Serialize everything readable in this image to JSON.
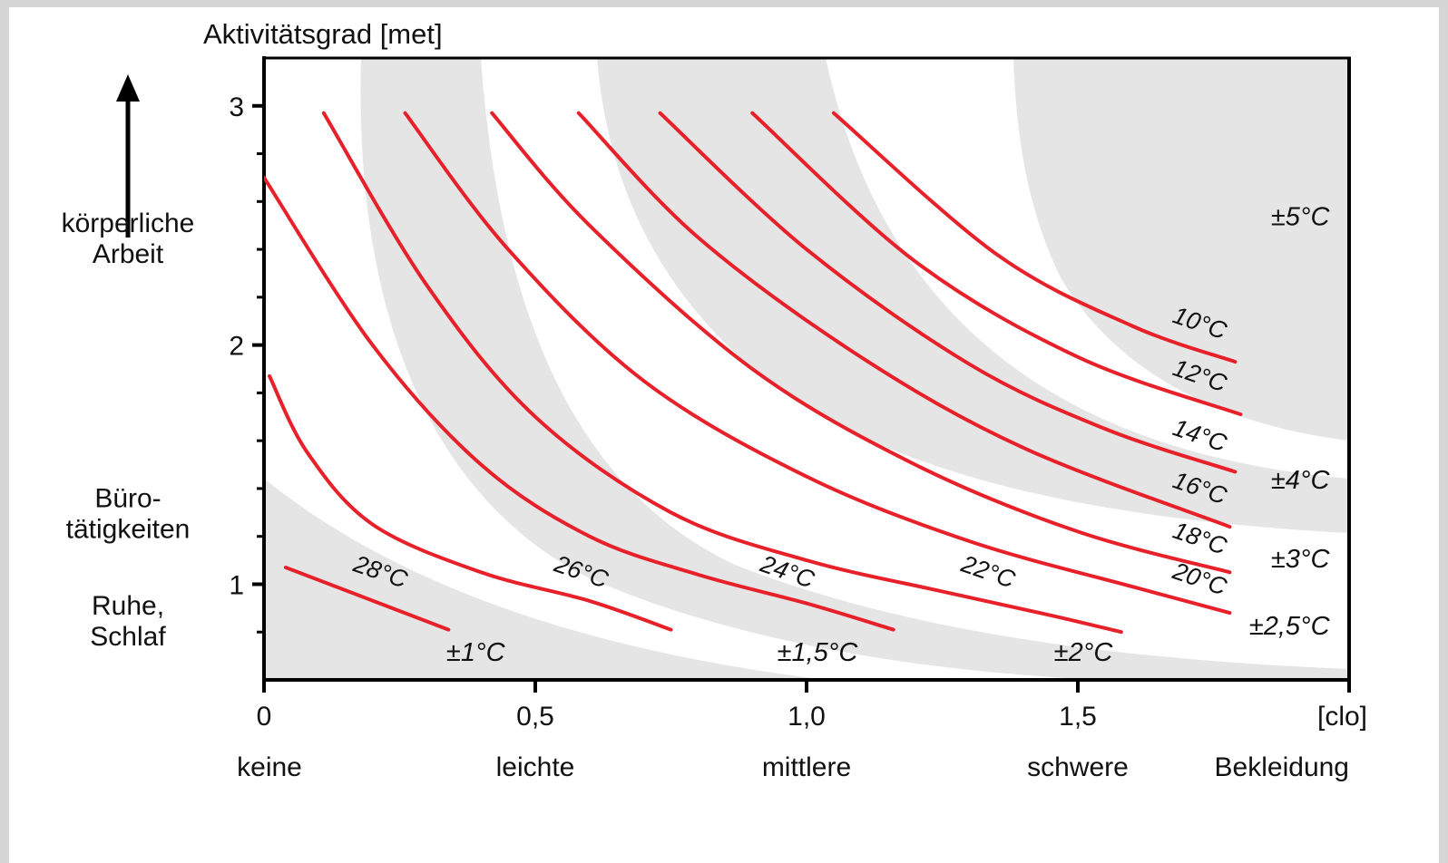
{
  "chart_data": {
    "type": "line",
    "y_title": "Aktivitätsgrad [met]",
    "x_unit": "[clo]",
    "xlim": [
      0,
      2.0
    ],
    "ylim": [
      0.6,
      3.2
    ],
    "x_ticks": [
      {
        "value": 0,
        "label": "0"
      },
      {
        "value": 0.5,
        "label": "0,5"
      },
      {
        "value": 1.0,
        "label": "1,0"
      },
      {
        "value": 1.5,
        "label": "1,5"
      }
    ],
    "y_ticks": [
      {
        "value": 1,
        "label": "1"
      },
      {
        "value": 2,
        "label": "2"
      },
      {
        "value": 3,
        "label": "3"
      }
    ],
    "y_minor_ticks": [
      0.8,
      1.2,
      1.4,
      1.6,
      1.8,
      2.2,
      2.4,
      2.6,
      2.8
    ],
    "x_categories": [
      {
        "value": 0.0,
        "label": "keine"
      },
      {
        "value": 0.5,
        "label": "leichte"
      },
      {
        "value": 1.0,
        "label": "mittlere"
      },
      {
        "value": 1.5,
        "label": "schwere"
      },
      {
        "value": 2.0,
        "label": "Bekleidung"
      }
    ],
    "activity_levels": [
      {
        "label": "körperliche",
        "label2": "Arbeit",
        "at": 2.45
      },
      {
        "label": "Büro-",
        "label2": "tätigkeiten",
        "at": 1.3
      },
      {
        "label": "Ruhe,",
        "label2": "Schlaf",
        "at": 0.85
      }
    ],
    "series": [
      {
        "name": "28°C",
        "color": "#e8202a",
        "points": [
          [
            0.04,
            1.07
          ],
          [
            0.34,
            0.81
          ]
        ]
      },
      {
        "name": "26°C",
        "color": "#e8202a",
        "points": [
          [
            0.01,
            1.87
          ],
          [
            0.08,
            1.55
          ],
          [
            0.2,
            1.25
          ],
          [
            0.4,
            1.05
          ],
          [
            0.6,
            0.93
          ],
          [
            0.75,
            0.81
          ]
        ]
      },
      {
        "name": "24°C",
        "color": "#e8202a",
        "points": [
          [
            0.0,
            2.7
          ],
          [
            0.2,
            2.0
          ],
          [
            0.4,
            1.5
          ],
          [
            0.6,
            1.2
          ],
          [
            0.8,
            1.04
          ],
          [
            1.0,
            0.92
          ],
          [
            1.16,
            0.81
          ]
        ]
      },
      {
        "name": "22°C",
        "color": "#e8202a",
        "points": [
          [
            0.11,
            2.97
          ],
          [
            0.3,
            2.25
          ],
          [
            0.5,
            1.7
          ],
          [
            0.75,
            1.3
          ],
          [
            1.0,
            1.1
          ],
          [
            1.25,
            0.97
          ],
          [
            1.45,
            0.87
          ],
          [
            1.58,
            0.8
          ]
        ]
      },
      {
        "name": "20°C",
        "color": "#e8202a",
        "points": [
          [
            0.26,
            2.97
          ],
          [
            0.45,
            2.4
          ],
          [
            0.7,
            1.85
          ],
          [
            1.0,
            1.45
          ],
          [
            1.3,
            1.18
          ],
          [
            1.6,
            0.99
          ],
          [
            1.78,
            0.88
          ]
        ]
      },
      {
        "name": "18°C",
        "color": "#e8202a",
        "points": [
          [
            0.42,
            2.97
          ],
          [
            0.6,
            2.5
          ],
          [
            0.9,
            1.9
          ],
          [
            1.2,
            1.5
          ],
          [
            1.5,
            1.22
          ],
          [
            1.78,
            1.05
          ]
        ]
      },
      {
        "name": "16°C",
        "color": "#e8202a",
        "points": [
          [
            0.58,
            2.97
          ],
          [
            0.8,
            2.45
          ],
          [
            1.1,
            1.95
          ],
          [
            1.4,
            1.57
          ],
          [
            1.78,
            1.24
          ]
        ]
      },
      {
        "name": "14°C",
        "color": "#e8202a",
        "points": [
          [
            0.73,
            2.97
          ],
          [
            1.0,
            2.4
          ],
          [
            1.3,
            1.92
          ],
          [
            1.55,
            1.65
          ],
          [
            1.79,
            1.47
          ]
        ]
      },
      {
        "name": "12°C",
        "color": "#e8202a",
        "points": [
          [
            0.9,
            2.97
          ],
          [
            1.2,
            2.35
          ],
          [
            1.5,
            1.95
          ],
          [
            1.8,
            1.71
          ]
        ]
      },
      {
        "name": "10°C",
        "color": "#e8202a",
        "points": [
          [
            1.05,
            2.97
          ],
          [
            1.35,
            2.38
          ],
          [
            1.6,
            2.08
          ],
          [
            1.79,
            1.93
          ]
        ]
      }
    ],
    "series_labels": [
      {
        "text": "28°C",
        "x": 0.21,
        "y": 1.02,
        "angle": 19
      },
      {
        "text": "26°C",
        "x": 0.58,
        "y": 1.02,
        "angle": 19
      },
      {
        "text": "24°C",
        "x": 0.96,
        "y": 1.02,
        "angle": 19
      },
      {
        "text": "22°C",
        "x": 1.33,
        "y": 1.02,
        "angle": 19
      },
      {
        "text": "20°C",
        "x": 1.72,
        "y": 0.99,
        "angle": 19
      },
      {
        "text": "18°C",
        "x": 1.72,
        "y": 1.16,
        "angle": 19
      },
      {
        "text": "16°C",
        "x": 1.72,
        "y": 1.37,
        "angle": 19
      },
      {
        "text": "14°C",
        "x": 1.72,
        "y": 1.59,
        "angle": 19
      },
      {
        "text": "12°C",
        "x": 1.72,
        "y": 1.84,
        "angle": 19
      },
      {
        "text": "10°C",
        "x": 1.72,
        "y": 2.06,
        "angle": 19
      }
    ],
    "tolerance_labels": [
      {
        "text": "±1°C",
        "x": 0.39,
        "y": 0.68
      },
      {
        "text": "±1,5°C",
        "x": 1.02,
        "y": 0.68
      },
      {
        "text": "±2°C",
        "x": 1.51,
        "y": 0.68
      },
      {
        "text": "±2,5°C",
        "x": 1.89,
        "y": 0.79
      },
      {
        "text": "±3°C",
        "x": 1.91,
        "y": 1.07
      },
      {
        "text": "±4°C",
        "x": 1.91,
        "y": 1.4
      },
      {
        "text": "±5°C",
        "x": 1.91,
        "y": 2.5
      }
    ],
    "band_color": "#e5e5e5",
    "grid": false
  }
}
